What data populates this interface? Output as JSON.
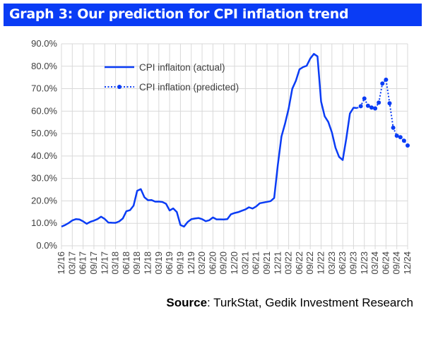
{
  "title": "Graph 3: Our prediction for CPI inflation trend",
  "source": {
    "label": "Source",
    "text": ": TurkStat, Gedik Investment Research"
  },
  "colors": {
    "accent": "#0a3cf5",
    "line": "#0a3cf5",
    "grid": "#d9d9d9"
  },
  "chart_data": {
    "type": "line",
    "title": "Graph 3: Our prediction for CPI inflation trend",
    "xlabel": "",
    "ylabel": "",
    "ylim": [
      0,
      90
    ],
    "yticks": [
      "0.0%",
      "10.0%",
      "20.0%",
      "30.0%",
      "40.0%",
      "50.0%",
      "60.0%",
      "70.0%",
      "80.0%",
      "90.0%"
    ],
    "start_month": "12/16",
    "xticks": [
      "12/16",
      "03/17",
      "06/17",
      "09/17",
      "12/17",
      "03/18",
      "06/18",
      "09/18",
      "12/18",
      "03/19",
      "06/19",
      "09/19",
      "12/19",
      "03/20",
      "06/20",
      "09/20",
      "12/20",
      "03/21",
      "06/21",
      "09/21",
      "12/21",
      "03/22",
      "06/22",
      "09/22",
      "12/22",
      "03/23",
      "06/23",
      "09/23",
      "12/23",
      "03/24",
      "06/24",
      "09/24",
      "12/24"
    ],
    "grid": true,
    "legend_position": "top-left",
    "series": [
      {
        "name": "CPI inflaiton (actual)",
        "style": "solid",
        "start_index": 0,
        "values": [
          8.53,
          9.22,
          10.13,
          11.29,
          11.87,
          11.72,
          10.9,
          9.79,
          10.68,
          11.2,
          11.9,
          12.98,
          11.92,
          10.35,
          10.26,
          10.23,
          10.85,
          12.15,
          15.39,
          15.85,
          17.9,
          24.52,
          25.24,
          21.62,
          20.3,
          20.35,
          19.67,
          19.71,
          19.5,
          18.71,
          15.72,
          16.65,
          15.01,
          9.26,
          8.55,
          10.56,
          11.84,
          12.15,
          12.37,
          11.86,
          10.94,
          11.39,
          12.62,
          11.76,
          11.77,
          11.75,
          11.89,
          14.03,
          14.6,
          14.97,
          15.61,
          16.19,
          17.14,
          16.59,
          17.53,
          18.95,
          19.25,
          19.58,
          19.89,
          21.31,
          36.08,
          48.69,
          54.44,
          61.14,
          69.97,
          73.5,
          78.62,
          79.6,
          80.21,
          83.45,
          85.51,
          84.39,
          64.27,
          57.68,
          55.18,
          50.51,
          43.68,
          39.59,
          38.21,
          47.83,
          58.94,
          61.53,
          61.36
        ]
      },
      {
        "name": "CPI inflation (predicted)",
        "style": "dotted-markers",
        "start_index": 82,
        "values": [
          61.36,
          62.2,
          65.6,
          62.4,
          61.6,
          61.2,
          63.8,
          72.3,
          74.0,
          63.5,
          52.6,
          49.0,
          48.4,
          46.8,
          44.7
        ]
      }
    ]
  }
}
